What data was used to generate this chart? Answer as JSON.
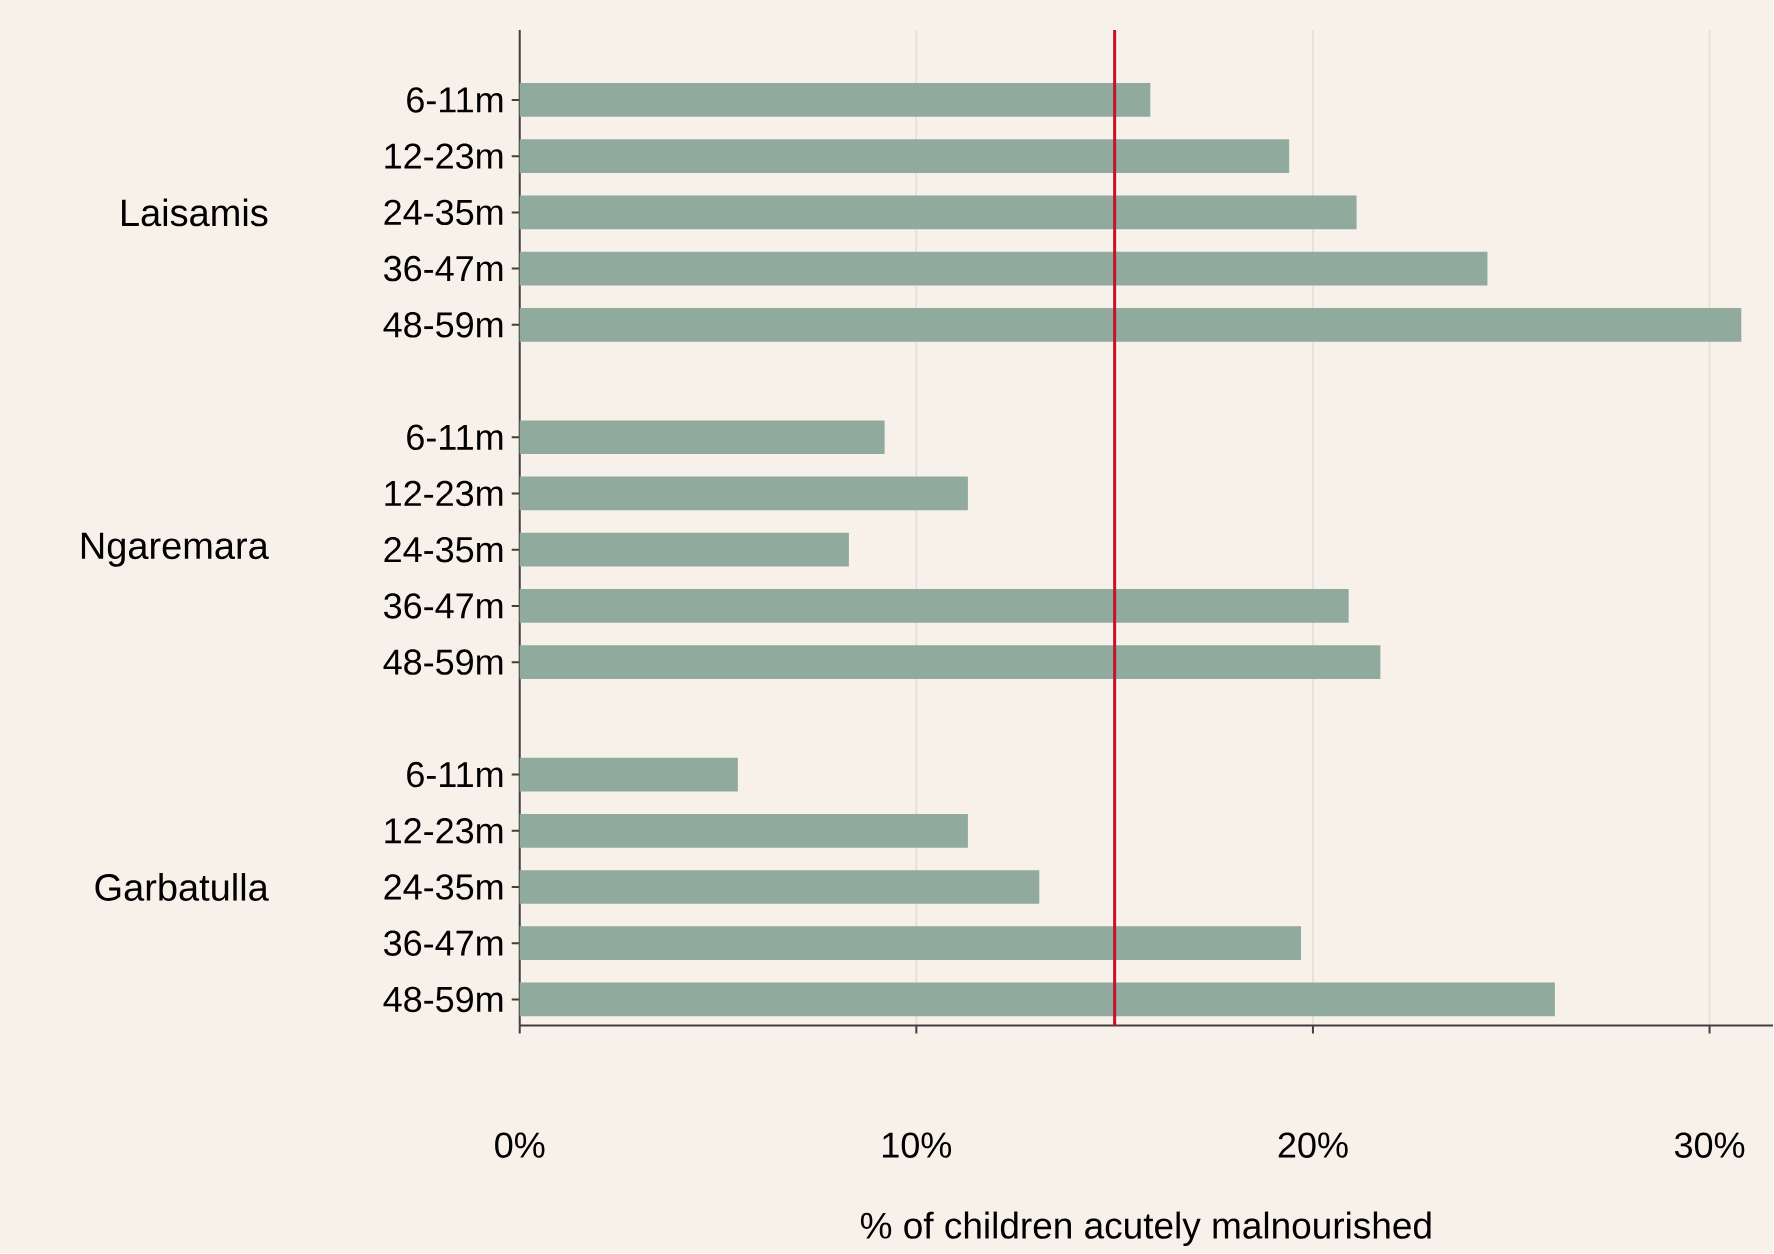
{
  "chart_data": {
    "type": "bar",
    "orientation": "horizontal",
    "categories": [
      "6-11m",
      "12-23m",
      "24-35m",
      "36-47m",
      "48-59m",
      null,
      "6-11m",
      "12-23m",
      "24-35m",
      "36-47m",
      "48-59m",
      null,
      "6-11m",
      "12-23m",
      "24-35m",
      "36-47m",
      "48-59m"
    ],
    "values": [
      15.9,
      19.4,
      21.1,
      24.4,
      30.8,
      null,
      9.2,
      11.3,
      8.3,
      20.9,
      21.7,
      null,
      5.5,
      11.3,
      13.1,
      19.7,
      26.1
    ],
    "color": "#90aa9e",
    "xlabel": "% of children acutely malnourished",
    "xlim": [
      0,
      31.6
    ],
    "xticks": [
      {
        "value": 0,
        "label": "0%"
      },
      {
        "value": 10,
        "label": "10%"
      },
      {
        "value": 20,
        "label": "20%"
      },
      {
        "value": 30,
        "label": "30%"
      }
    ],
    "grid": "x",
    "ref_lines": [
      {
        "axis": "x",
        "value": 15,
        "color": "#c8102e"
      }
    ],
    "annotations": [
      "Laisamis",
      "Ngaremara",
      "Garbatulla"
    ]
  }
}
